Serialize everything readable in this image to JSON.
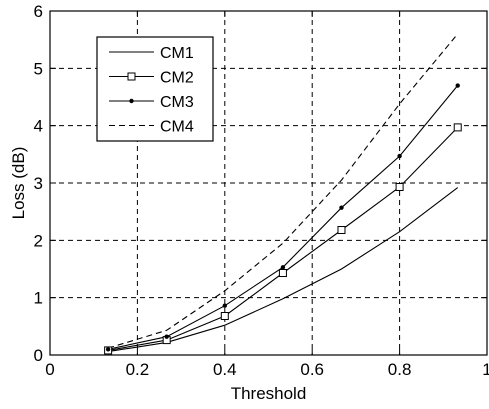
{
  "chart_data": {
    "type": "line",
    "xlabel": "Threshold",
    "ylabel": "Loss (dB)",
    "xlim": [
      0,
      1
    ],
    "ylim": [
      0,
      6
    ],
    "xticks": [
      0,
      0.2,
      0.4,
      0.6,
      0.8,
      1
    ],
    "xtick_labels": [
      "0",
      "0.2",
      "0.4",
      "0.6",
      "0.8",
      "1"
    ],
    "yticks": [
      0,
      1,
      2,
      3,
      4,
      5,
      6
    ],
    "ytick_labels": [
      "0",
      "1",
      "2",
      "3",
      "4",
      "5",
      "6"
    ],
    "grid": true,
    "legend_position": "top-left",
    "x": [
      0.133,
      0.267,
      0.4,
      0.533,
      0.667,
      0.8,
      0.933
    ],
    "series": [
      {
        "name": "CM1",
        "style": "solid",
        "marker": "none",
        "values": [
          0.06,
          0.22,
          0.52,
          0.98,
          1.5,
          2.15,
          2.92
        ]
      },
      {
        "name": "CM2",
        "style": "solid",
        "marker": "square",
        "values": [
          0.08,
          0.26,
          0.68,
          1.43,
          2.18,
          2.93,
          3.97
        ]
      },
      {
        "name": "CM3",
        "style": "solid",
        "marker": "dot",
        "values": [
          0.1,
          0.32,
          0.86,
          1.53,
          2.57,
          3.47,
          4.7
        ]
      },
      {
        "name": "CM4",
        "style": "dashed",
        "marker": "none",
        "values": [
          0.12,
          0.43,
          1.12,
          1.95,
          3.05,
          4.38,
          5.6
        ]
      }
    ]
  }
}
